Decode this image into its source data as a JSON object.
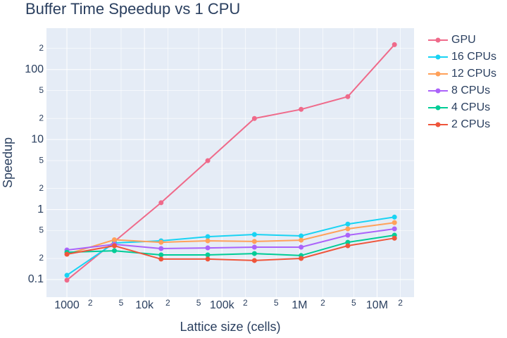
{
  "chart_data": {
    "type": "line",
    "title": "Buffer Time Speedup vs 1 CPU",
    "x_label": "Lattice size (cells)",
    "y_label": "Speedup",
    "x": [
      1000,
      4096,
      16384,
      65536,
      262144,
      1048576,
      4194304,
      16777216
    ],
    "series": [
      {
        "name": "GPU",
        "color": "#ef6a8a",
        "values": [
          0.098,
          0.349,
          1.25,
          4.99,
          20,
          27,
          41,
          227
        ]
      },
      {
        "name": "16 CPUs",
        "color": "#19d3f3",
        "values": [
          0.115,
          0.333,
          0.357,
          0.41,
          0.44,
          0.42,
          0.62,
          0.78
        ]
      },
      {
        "name": "12 CPUs",
        "color": "#ffa15a",
        "values": [
          0.23,
          0.37,
          0.34,
          0.357,
          0.35,
          0.365,
          0.53,
          0.65
        ]
      },
      {
        "name": "8 CPUs",
        "color": "#ab63fa",
        "values": [
          0.264,
          0.318,
          0.277,
          0.283,
          0.29,
          0.29,
          0.43,
          0.53
        ]
      },
      {
        "name": "4 CPUs",
        "color": "#00cc96",
        "values": [
          0.245,
          0.258,
          0.225,
          0.225,
          0.235,
          0.22,
          0.34,
          0.43
        ]
      },
      {
        "name": "2 CPUs",
        "color": "#ef553b",
        "values": [
          0.23,
          0.304,
          0.196,
          0.196,
          0.187,
          0.2,
          0.304,
          0.39
        ]
      }
    ],
    "x_log": true,
    "y_log": true,
    "grid": true,
    "xlim": [
      545,
      30000000
    ],
    "ylim": [
      0.056,
      390
    ],
    "xticks": [
      1000,
      {
        "value": 2000,
        "label": "2"
      },
      {
        "value": 5000,
        "label": "5"
      },
      {
        "value": 10000,
        "label": "10k"
      },
      {
        "value": 20000,
        "label": "2"
      },
      {
        "value": 50000,
        "label": "5"
      },
      {
        "value": 100000,
        "label": "100k"
      },
      {
        "value": 200000,
        "label": "2"
      },
      {
        "value": 500000,
        "label": "5"
      },
      {
        "value": 1000000,
        "label": "1M"
      },
      {
        "value": 2000000,
        "label": "2"
      },
      {
        "value": 5000000,
        "label": "5"
      },
      {
        "value": 10000000,
        "label": "10M"
      },
      {
        "value": 20000000,
        "label": "2"
      }
    ],
    "yticks": [
      0.1,
      {
        "value": 0.2,
        "label": "2"
      },
      {
        "value": 0.5,
        "label": "5"
      },
      1,
      {
        "value": 2,
        "label": "2"
      },
      {
        "value": 5,
        "label": "5"
      },
      10,
      {
        "value": 20,
        "label": "2"
      },
      {
        "value": 50,
        "label": "5"
      },
      100,
      {
        "value": 200,
        "label": "2"
      }
    ]
  }
}
